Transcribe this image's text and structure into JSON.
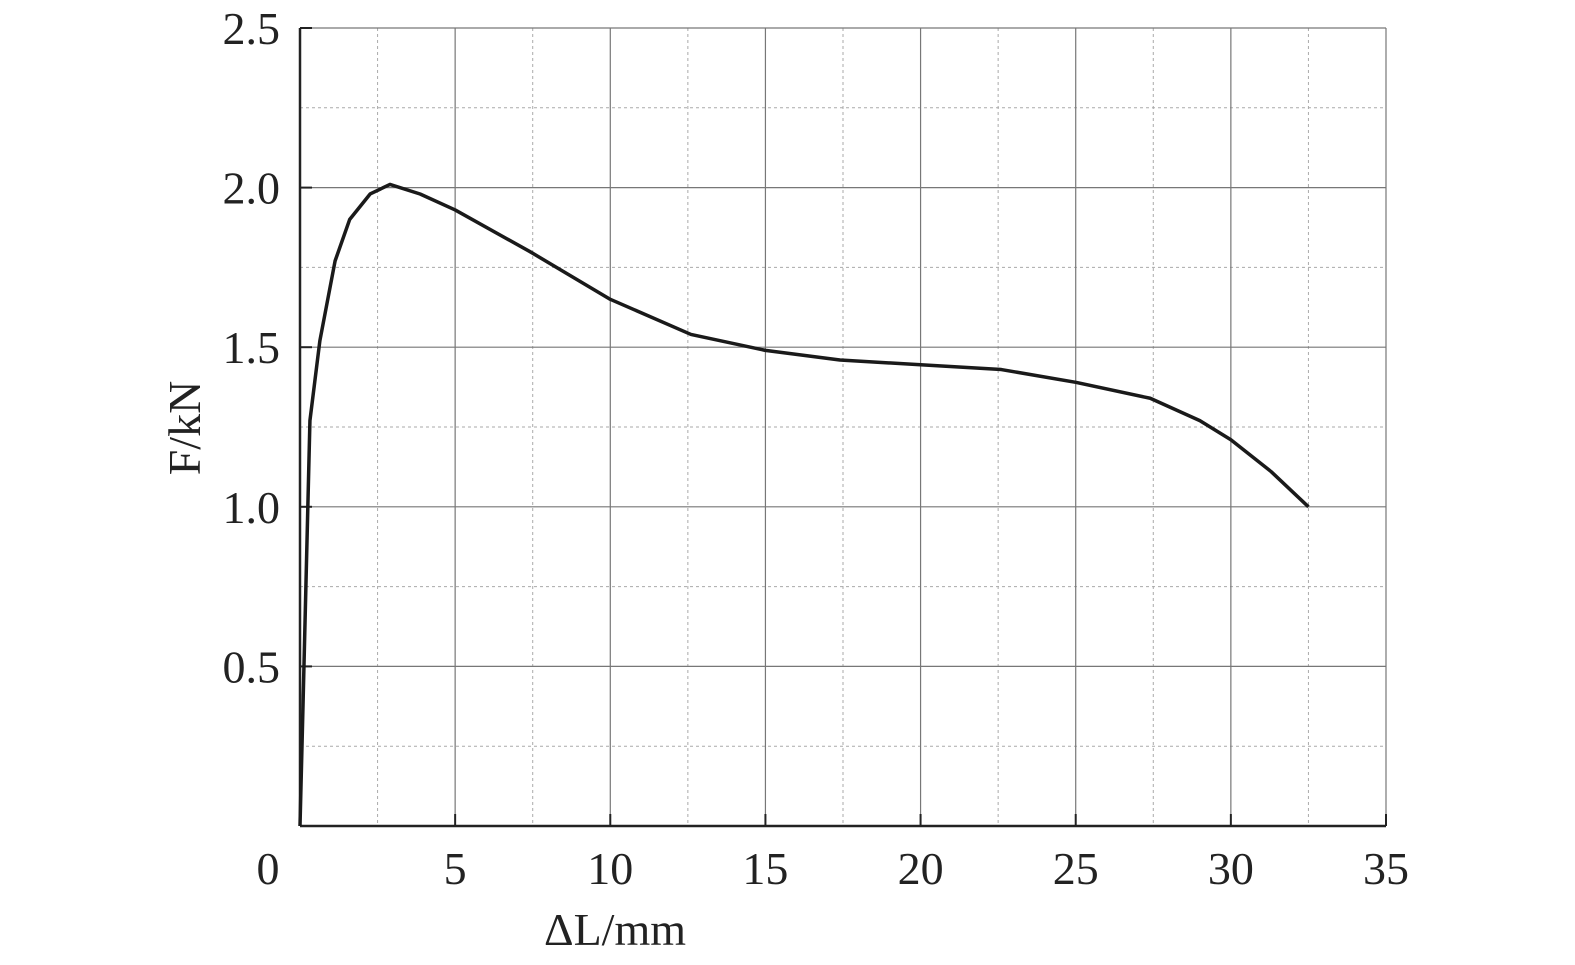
{
  "chart_data": {
    "type": "line",
    "xlabel": "ΔL/mm",
    "ylabel": "F/kN",
    "x": [
      0,
      0.1,
      0.32,
      0.64,
      1.13,
      1.6,
      2.26,
      2.9,
      3.87,
      5,
      7.4,
      10,
      12.6,
      15,
      17.4,
      20,
      22.6,
      25,
      27.4,
      29,
      30,
      31.3,
      32.5
    ],
    "series": [
      {
        "color": "#1a1a1a",
        "values": [
          0,
          0.39,
          1.27,
          1.52,
          1.77,
          1.9,
          1.98,
          2.01,
          1.98,
          1.93,
          1.8,
          1.65,
          1.54,
          1.49,
          1.46,
          1.445,
          1.43,
          1.39,
          1.34,
          1.27,
          1.21,
          1.11,
          1.0
        ]
      }
    ],
    "xlim": [
      0,
      35
    ],
    "xticks": [
      0,
      5,
      10,
      15,
      20,
      25,
      30,
      35
    ],
    "ylim": [
      0,
      2.5
    ],
    "yticks": [
      0.5,
      {
        "value": 1,
        "label": "1.0"
      },
      1.5,
      {
        "value": 2,
        "label": "2.0"
      },
      2.5
    ],
    "grid": true,
    "minor_grid": true
  }
}
